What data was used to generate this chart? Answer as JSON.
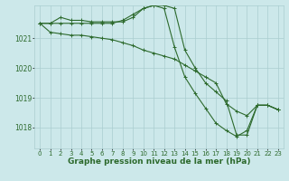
{
  "background_color": "#cce8ea",
  "grid_color": "#aacdd0",
  "line_color": "#2d6a2d",
  "marker_color": "#2d6a2d",
  "xlabel": "Graphe pression niveau de la mer (hPa)",
  "xlabel_fontsize": 6.5,
  "ylim": [
    1017.3,
    1022.1
  ],
  "xlim": [
    -0.5,
    23.5
  ],
  "yticks": [
    1018,
    1019,
    1020,
    1021
  ],
  "xticks": [
    0,
    1,
    2,
    3,
    4,
    5,
    6,
    7,
    8,
    9,
    10,
    11,
    12,
    13,
    14,
    15,
    16,
    17,
    18,
    19,
    20,
    21,
    22,
    23
  ],
  "series1": [
    1021.5,
    1021.5,
    1021.5,
    1021.5,
    1021.5,
    1021.5,
    1021.5,
    1021.5,
    1021.6,
    1021.8,
    1022.0,
    1022.1,
    1022.1,
    1022.0,
    1020.6,
    1020.0,
    1019.5,
    1019.2,
    1018.9,
    1017.75,
    1017.75,
    1018.75,
    1018.75,
    1018.6
  ],
  "series2": [
    1021.5,
    1021.5,
    1021.7,
    1021.6,
    1021.6,
    1021.55,
    1021.55,
    1021.55,
    1021.55,
    1021.7,
    1022.0,
    1022.1,
    1022.0,
    1020.7,
    1019.7,
    1019.15,
    1018.65,
    1018.15,
    1017.9,
    1017.7,
    1017.9,
    1018.75,
    1018.75,
    1018.6
  ],
  "series3": [
    1021.5,
    1021.2,
    1021.15,
    1021.1,
    1021.1,
    1021.05,
    1021.0,
    1020.95,
    1020.85,
    1020.75,
    1020.6,
    1020.5,
    1020.4,
    1020.3,
    1020.1,
    1019.9,
    1019.7,
    1019.5,
    1018.8,
    1018.55,
    1018.4,
    1018.75,
    1018.75,
    1018.6
  ]
}
